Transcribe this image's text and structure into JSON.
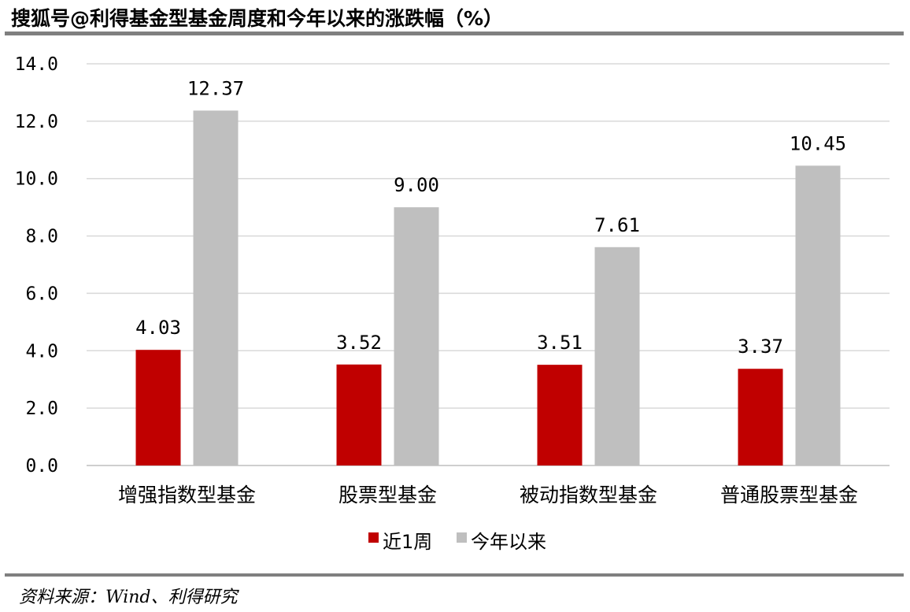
{
  "header": {
    "title": "搜狐号@利得基金型基金周度和今年以来的涨跌幅（%）"
  },
  "footer": {
    "source": "资料来源：Wind、利得研究"
  },
  "chart_data": {
    "type": "bar",
    "title": "",
    "categories": [
      "增强指数型基金",
      "股票型基金",
      "被动指数型基金",
      "普通股票型基金"
    ],
    "series": [
      {
        "name": "近1周",
        "values": [
          4.03,
          3.52,
          3.51,
          3.37
        ],
        "labels": [
          "4.03",
          "3.52",
          "3.51",
          "3.37"
        ],
        "color": "#c00000"
      },
      {
        "name": "今年以来",
        "values": [
          12.37,
          9.0,
          7.61,
          10.45
        ],
        "labels": [
          "12.37",
          "9.00",
          "7.61",
          "10.45"
        ],
        "color": "#bfbfbf"
      }
    ],
    "ylim": [
      0,
      14
    ],
    "yticks": [
      "0.0",
      "2.0",
      "4.0",
      "6.0",
      "8.0",
      "10.0",
      "12.0",
      "14.0"
    ],
    "grid": true,
    "legend": "bottom-center"
  }
}
